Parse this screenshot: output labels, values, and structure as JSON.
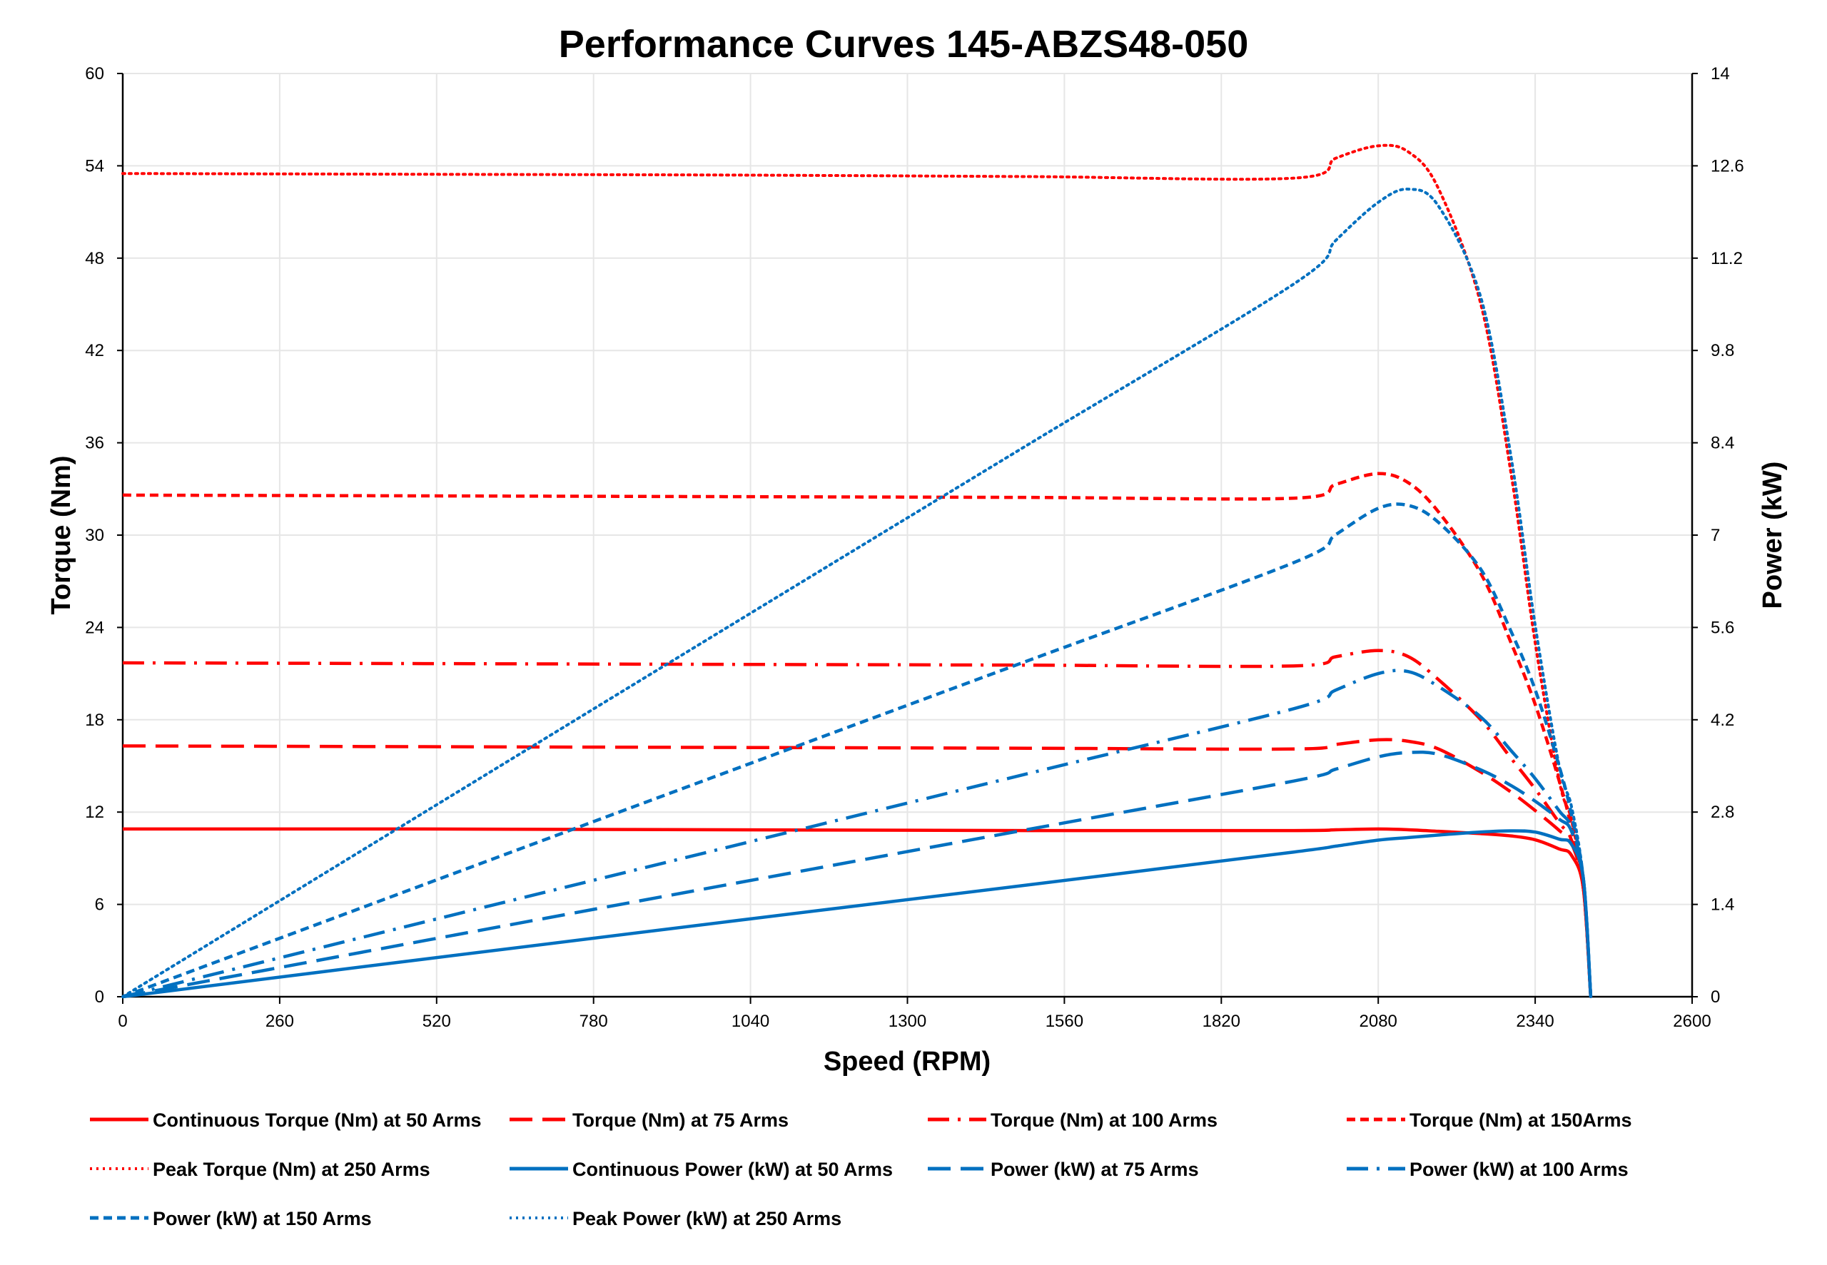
{
  "chart_data": {
    "type": "line",
    "title": "Performance Curves 145-ABZS48-050",
    "xlabel": "Speed (RPM)",
    "ylabel": "Torque (Nm)",
    "y2label": "Power (kW)",
    "xlim": [
      0,
      2600
    ],
    "ylim": [
      0,
      60
    ],
    "y2lim": [
      0,
      14
    ],
    "x_ticks": [
      "0",
      "260",
      "520",
      "780",
      "1040",
      "1300",
      "1560",
      "1820",
      "2080",
      "2340",
      "2600"
    ],
    "y_ticks": [
      "0",
      "6",
      "12",
      "18",
      "24",
      "30",
      "36",
      "42",
      "48",
      "54",
      "60"
    ],
    "y2_ticks": [
      "0",
      "1.4",
      "2.8",
      "4.2",
      "5.6",
      "7",
      "8.4",
      "9.8",
      "11.2",
      "12.6",
      "14"
    ],
    "grid": true,
    "legend_position": "bottom",
    "colors": {
      "torque": "#FF0000",
      "power": "#0070C0"
    },
    "x": [
      0,
      500,
      1000,
      1500,
      1940,
      2010,
      2080,
      2130,
      2180,
      2250,
      2300,
      2340,
      2380,
      2400,
      2420,
      2432
    ],
    "series": [
      {
        "name": "Continuous Torque (Nm) at 50 Arms",
        "axis": "left",
        "color": "#FF0000",
        "style": "solid",
        "values": [
          10.9,
          10.9,
          10.85,
          10.8,
          10.8,
          10.85,
          10.9,
          10.85,
          10.75,
          10.6,
          10.45,
          10.2,
          9.6,
          9.2,
          7,
          0
        ]
      },
      {
        "name": "Torque (Nm) at 75 Arms",
        "axis": "left",
        "color": "#FF0000",
        "style": "long-dash",
        "values": [
          16.3,
          16.25,
          16.2,
          16.15,
          16.1,
          16.4,
          16.7,
          16.6,
          16.1,
          14.6,
          13.3,
          12.1,
          10.8,
          10.0,
          7,
          0
        ]
      },
      {
        "name": "Torque (Nm) at 100 Arms",
        "axis": "left",
        "color": "#FF0000",
        "style": "dash-dot",
        "values": [
          21.7,
          21.65,
          21.6,
          21.55,
          21.5,
          22.1,
          22.5,
          22.1,
          20.6,
          18,
          15.5,
          13.5,
          11.3,
          10.2,
          7,
          0
        ]
      },
      {
        "name": "Torque (Nm) at 150Arms",
        "axis": "left",
        "color": "#FF0000",
        "style": "short-dash",
        "values": [
          32.6,
          32.55,
          32.5,
          32.45,
          32.4,
          33.3,
          34,
          33.4,
          31.5,
          27.5,
          23,
          19,
          14,
          11,
          7,
          0
        ]
      },
      {
        "name": "Peak Torque (Nm) at 250  Arms",
        "axis": "left",
        "color": "#FF0000",
        "style": "dotted",
        "values": [
          53.5,
          53.45,
          53.4,
          53.3,
          53.2,
          54.5,
          55.3,
          54.9,
          52.5,
          45,
          34,
          23,
          14,
          11.5,
          7,
          0
        ]
      },
      {
        "name": "Continuous Power (kW) at 50 Arms",
        "axis": "right",
        "color": "#0070C0",
        "style": "solid",
        "values": [
          0,
          0.571,
          1.136,
          1.696,
          2.194,
          2.284,
          2.375,
          2.414,
          2.452,
          2.498,
          2.516,
          2.497,
          2.389,
          2.313,
          1.773,
          0
        ]
      },
      {
        "name": "Power (kW) at 75 Arms",
        "axis": "right",
        "color": "#0070C0",
        "style": "long-dash",
        "values": [
          0,
          0.851,
          1.696,
          2.537,
          3.271,
          3.452,
          3.638,
          3.703,
          3.676,
          3.44,
          3.203,
          2.965,
          2.692,
          2.513,
          1.774,
          0
        ]
      },
      {
        "name": "Power (kW) at 100 Arms",
        "axis": "right",
        "color": "#0070C0",
        "style": "dash-dot",
        "values": [
          0,
          1.134,
          2.262,
          3.385,
          4.368,
          4.652,
          4.901,
          4.93,
          4.703,
          4.241,
          3.733,
          3.308,
          2.816,
          2.564,
          1.774,
          0
        ]
      },
      {
        "name": "Power (kW) at 150 Arms",
        "axis": "right",
        "color": "#0070C0",
        "style": "short-dash",
        "values": [
          0,
          1.704,
          3.403,
          5.097,
          6.583,
          7.01,
          7.406,
          7.45,
          7.191,
          6.48,
          5.54,
          4.656,
          3.489,
          2.765,
          1.774,
          0
        ]
      },
      {
        "name": "Peak Power (kW) at 250 Arms",
        "axis": "right",
        "color": "#0070C0",
        "style": "dotted",
        "values": [
          0,
          2.799,
          5.592,
          8.373,
          10.808,
          11.472,
          12.046,
          12.246,
          11.986,
          10.603,
          8.189,
          5.636,
          3.489,
          2.89,
          1.774,
          0
        ]
      }
    ]
  }
}
